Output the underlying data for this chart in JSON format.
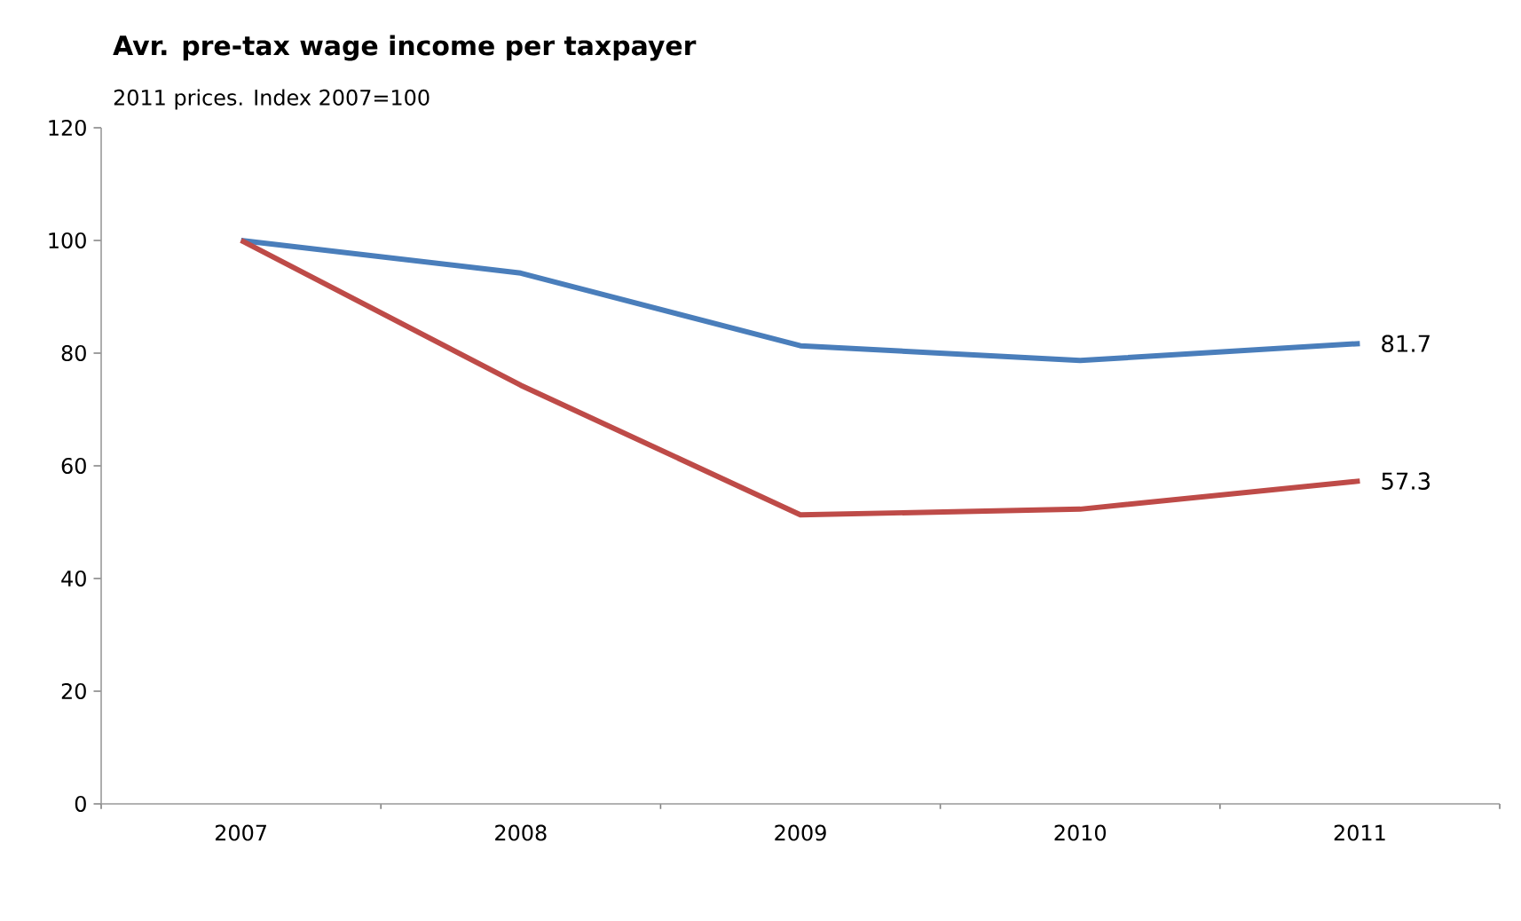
{
  "chart_data": {
    "type": "line",
    "title": "Avr. pre-tax wage income per taxpayer",
    "subtitle": "2011 prices. Index 2007=100",
    "categories": [
      "2007",
      "2008",
      "2009",
      "2010",
      "2011"
    ],
    "series": [
      {
        "color": "#4a7ebb",
        "values": [
          100,
          94.2,
          81.3,
          78.7,
          81.7
        ],
        "value_labels": [
          null,
          null,
          null,
          null,
          "81.7"
        ]
      },
      {
        "color": "#be4b48",
        "values": [
          100,
          74.3,
          51.3,
          52.3,
          57.3
        ],
        "value_labels": [
          null,
          null,
          null,
          null,
          "57.3"
        ]
      }
    ],
    "ylim": [
      0,
      120
    ],
    "yticks": [
      0,
      20,
      40,
      60,
      80,
      100,
      120
    ],
    "grid": false,
    "marker": "none",
    "line_style": "solid"
  }
}
